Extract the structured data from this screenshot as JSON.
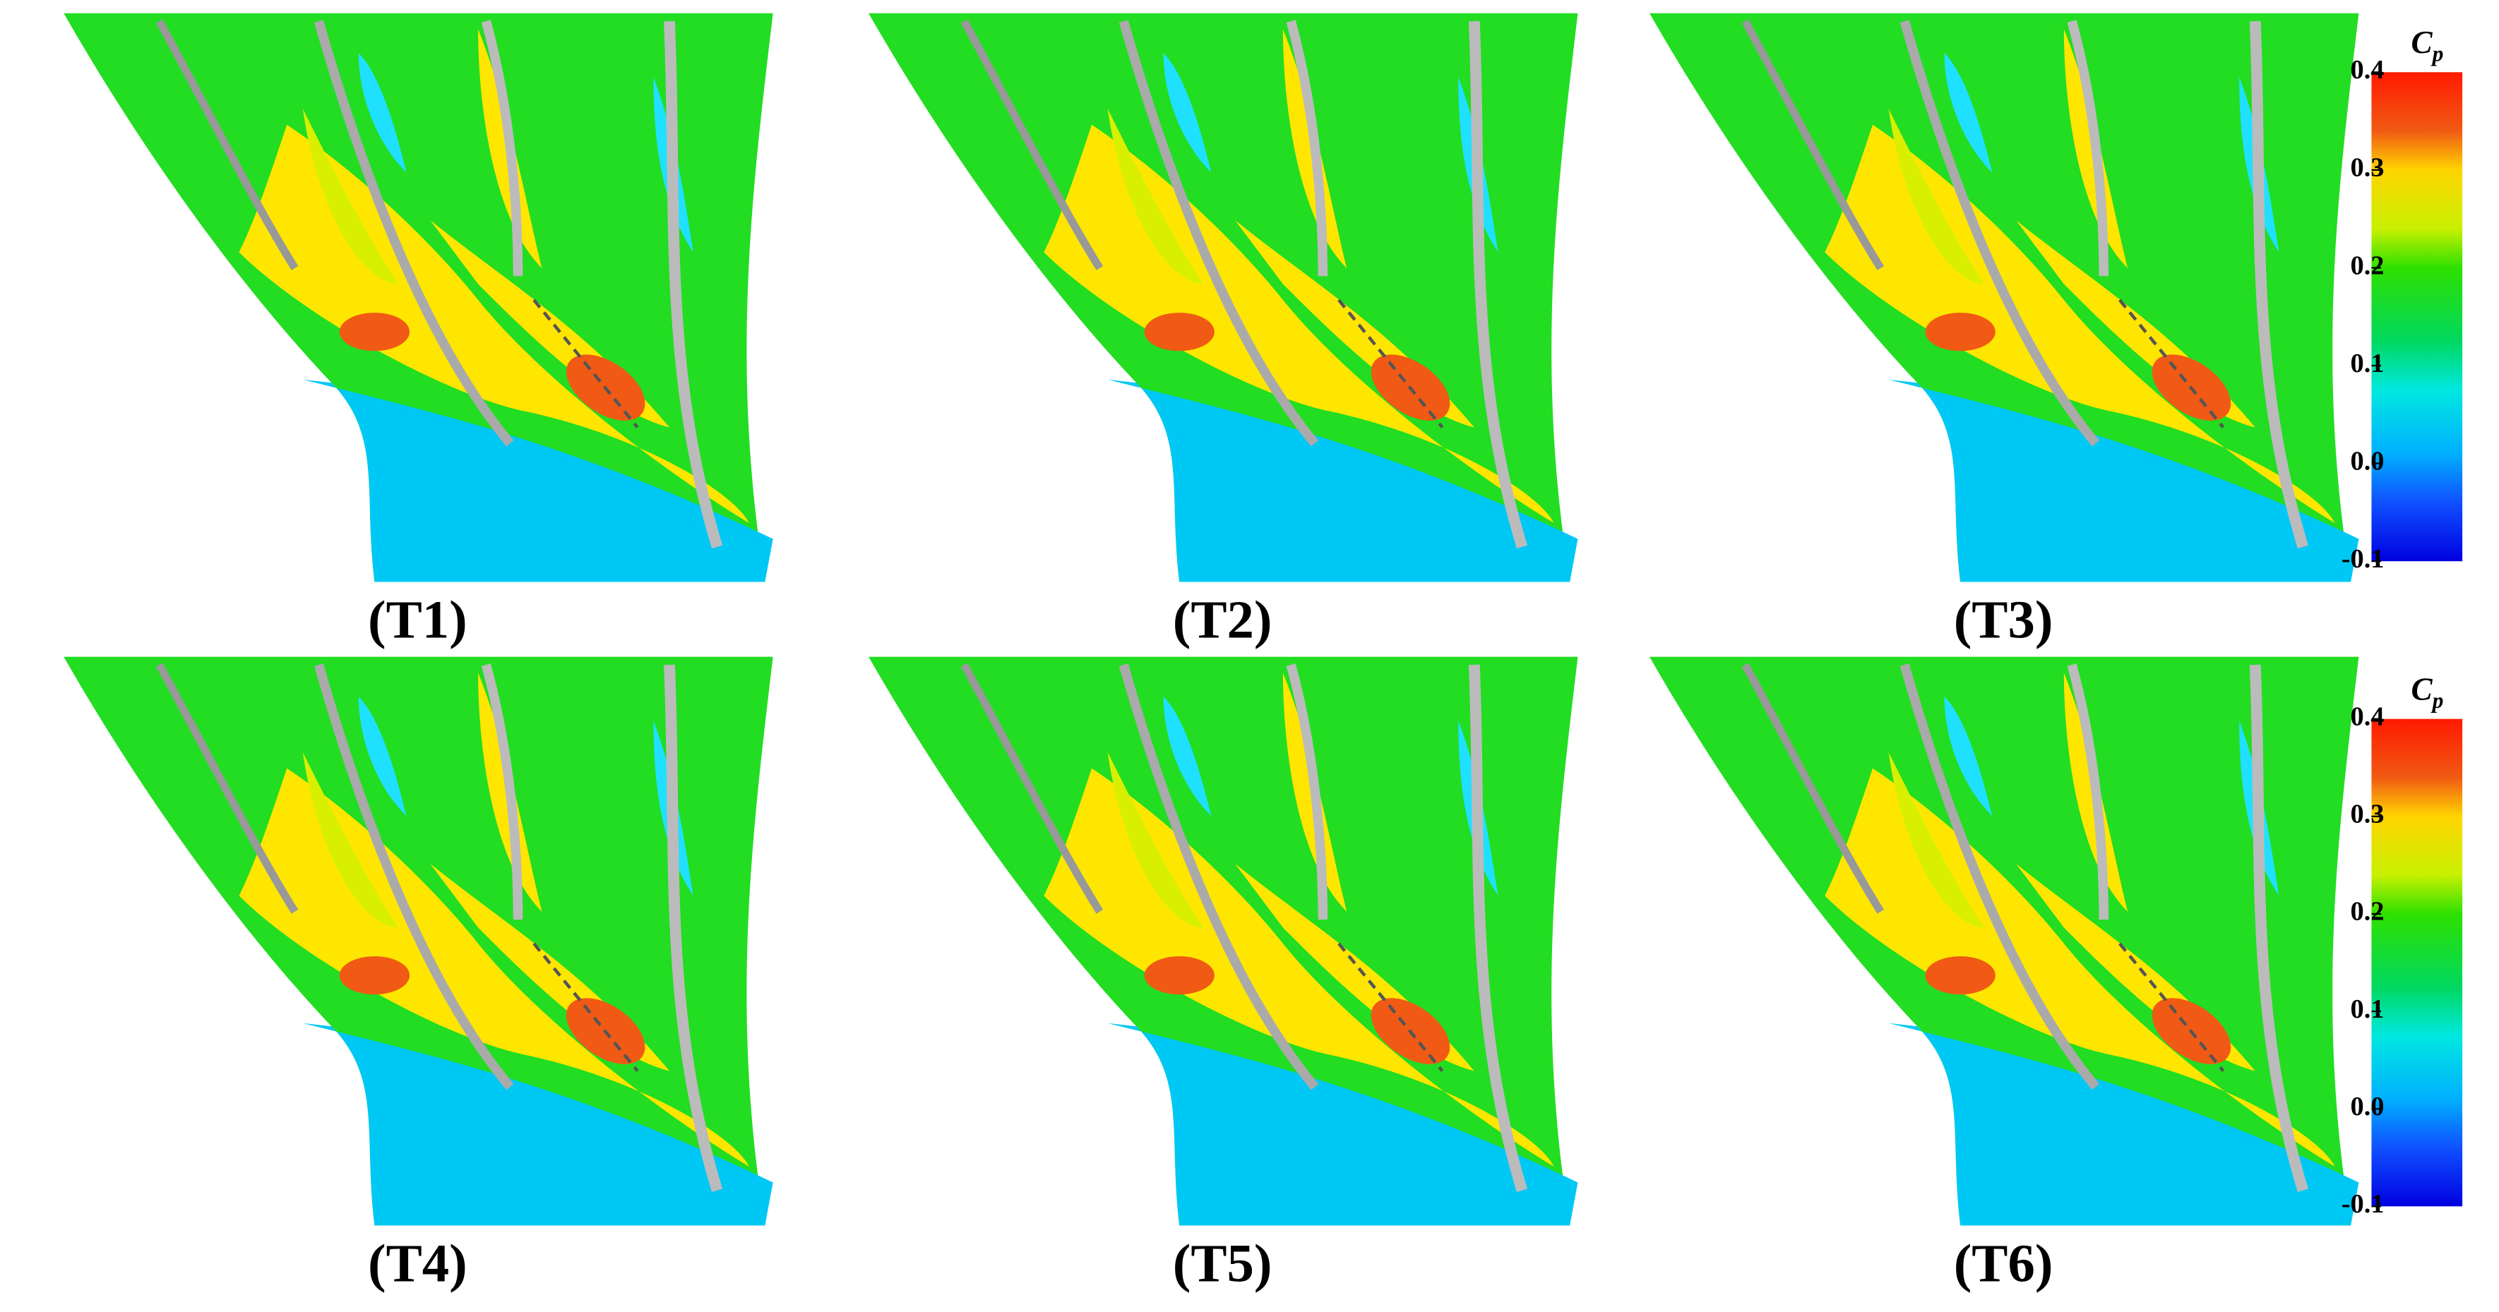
{
  "panels": [
    {
      "label": "(T1)"
    },
    {
      "label": "(T2)"
    },
    {
      "label": "(T3)"
    },
    {
      "label": "(T4)"
    },
    {
      "label": "(T5)"
    },
    {
      "label": "(T6)"
    }
  ],
  "colorbars": [
    {
      "title": "C",
      "title_subscript": "p",
      "lim": [
        -0.1,
        0.4
      ],
      "ticks": [
        0.4,
        0.3,
        0.2,
        0.1,
        {
          "value": 0,
          "label": "0.0"
        },
        -0.1
      ]
    },
    {
      "title": "C",
      "title_subscript": "p",
      "lim": [
        -0.1,
        0.4
      ],
      "ticks": [
        0.4,
        0.3,
        0.2,
        0.1,
        {
          "value": 0,
          "label": "0.0"
        },
        -0.1
      ]
    }
  ]
}
